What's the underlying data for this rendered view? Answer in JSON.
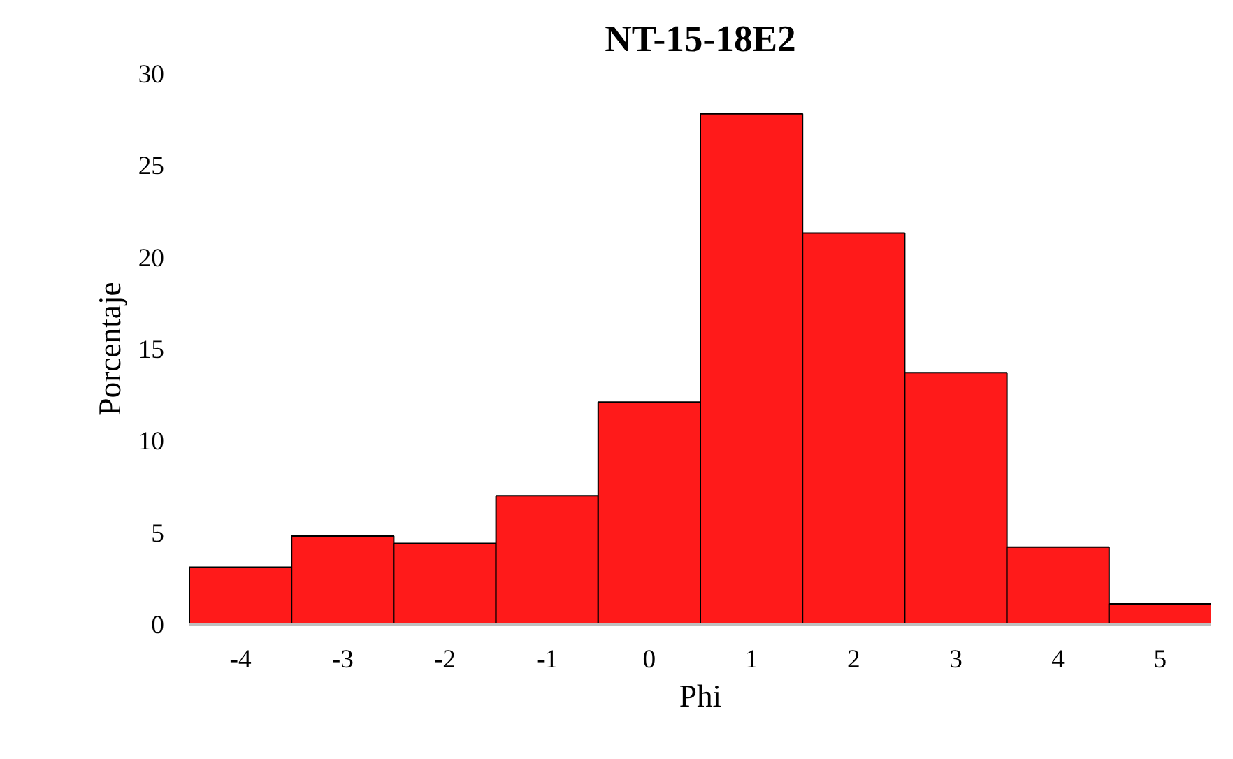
{
  "chart_data": {
    "type": "bar",
    "title": "NT-15-18E2",
    "xlabel": "Phi",
    "ylabel": "Porcentaje",
    "categories": [
      "-4",
      "-3",
      "-2",
      "-1",
      "0",
      "1",
      "2",
      "3",
      "4",
      "5"
    ],
    "values": [
      3.1,
      4.8,
      4.4,
      7.0,
      12.1,
      27.8,
      21.3,
      13.7,
      4.2,
      1.1
    ],
    "color": "#ff1a1a",
    "ylim": [
      0,
      30
    ],
    "yticks": [
      0,
      5,
      10,
      15,
      20,
      25,
      30
    ],
    "grid": false
  }
}
